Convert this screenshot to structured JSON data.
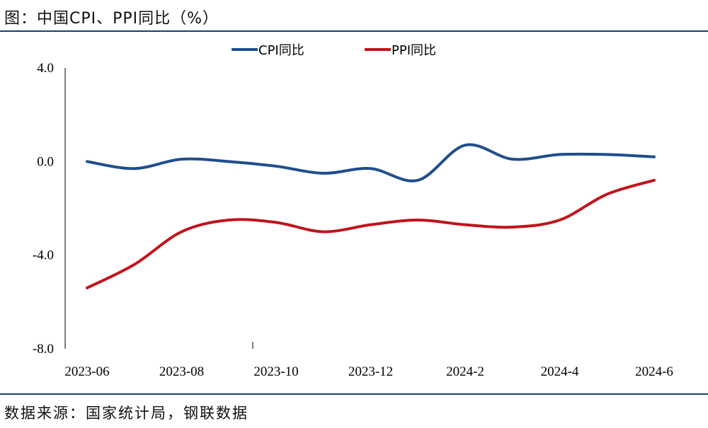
{
  "title": "图：中国CPI、PPI同比（%）",
  "source": "数据来源：国家统计局，钢联数据",
  "chart_data": {
    "type": "line",
    "title": "图：中国CPI、PPI同比（%）",
    "xlabel": "",
    "ylabel": "",
    "x": [
      "2023-06",
      "2023-07",
      "2023-08",
      "2023-09",
      "2023-10",
      "2023-11",
      "2023-12",
      "2024-1",
      "2024-2",
      "2024-3",
      "2024-4",
      "2024-5",
      "2024-6"
    ],
    "x_tick_labels": [
      "2023-06",
      "2023-08",
      "2023-10",
      "2023-12",
      "2024-2",
      "2024-4",
      "2024-6"
    ],
    "y_tick_labels": [
      "4.0",
      "0.0",
      "-4.0",
      "-8.0"
    ],
    "ylim": [
      -8,
      4
    ],
    "grid": false,
    "legend": "top-center",
    "series": [
      {
        "name": "CPI同比",
        "color": "#1f4e8c",
        "values": [
          0.0,
          -0.3,
          0.1,
          0.0,
          -0.2,
          -0.5,
          -0.3,
          -0.8,
          0.7,
          0.1,
          0.3,
          0.3,
          0.2
        ]
      },
      {
        "name": "PPI同比",
        "color": "#c0141c",
        "values": [
          -5.4,
          -4.4,
          -3.0,
          -2.5,
          -2.6,
          -3.0,
          -2.7,
          -2.5,
          -2.7,
          -2.8,
          -2.5,
          -1.4,
          -0.8
        ]
      }
    ]
  }
}
